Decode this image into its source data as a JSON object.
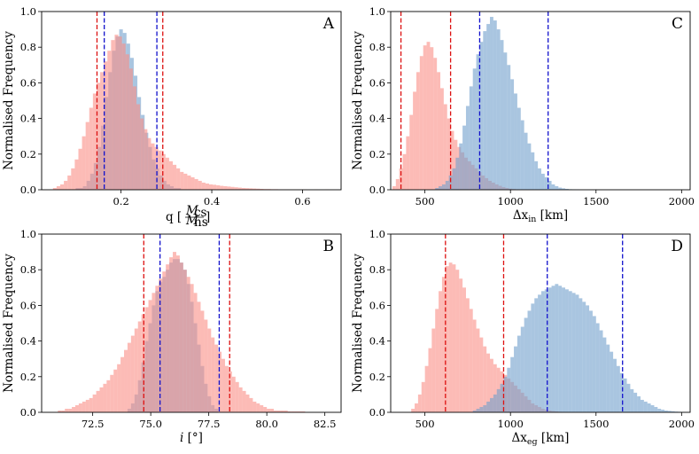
{
  "chart_data": [
    {
      "panel": "A",
      "type": "histogram",
      "ylabel": "Normalised Frequency",
      "xlabel": {
        "main": "q [",
        "num": "M",
        "num_sub": "cs",
        "den": "M",
        "den_sub": "ns",
        "close": "]"
      },
      "xlim": [
        0.025,
        0.685
      ],
      "ylim": [
        0,
        1.0
      ],
      "xticks": [
        {
          "v": 0.2,
          "label": "0.2"
        },
        {
          "v": 0.4,
          "label": "0.4"
        },
        {
          "v": 0.6,
          "label": "0.6"
        }
      ],
      "yticks": [
        {
          "v": 0.0,
          "label": "0.0"
        },
        {
          "v": 0.2,
          "label": "0.2"
        },
        {
          "v": 0.4,
          "label": "0.4"
        },
        {
          "v": 0.6,
          "label": "0.6"
        },
        {
          "v": 0.8,
          "label": "0.8"
        },
        {
          "v": 1.0,
          "label": "1.0"
        }
      ],
      "series": [
        {
          "name": "blue",
          "color": "#6f9fcc",
          "bin_start": 0.06,
          "bin_width": 0.008,
          "values": [
            0,
            0,
            0,
            0,
            0,
            0.01,
            0.01,
            0.02,
            0.05,
            0.09,
            0.15,
            0.24,
            0.36,
            0.52,
            0.66,
            0.78,
            0.86,
            0.9,
            0.88,
            0.82,
            0.74,
            0.64,
            0.52,
            0.42,
            0.32,
            0.24,
            0.17,
            0.12,
            0.08,
            0.05,
            0.03,
            0.02,
            0.01,
            0.01
          ]
        },
        {
          "name": "red",
          "color": "#fa8e86",
          "bin_start": 0.05,
          "bin_width": 0.008,
          "values": [
            0.01,
            0.02,
            0.03,
            0.05,
            0.08,
            0.12,
            0.17,
            0.23,
            0.3,
            0.38,
            0.46,
            0.54,
            0.6,
            0.66,
            0.72,
            0.78,
            0.84,
            0.87,
            0.86,
            0.82,
            0.76,
            0.68,
            0.58,
            0.48,
            0.4,
            0.34,
            0.29,
            0.26,
            0.24,
            0.22,
            0.2,
            0.18,
            0.16,
            0.14,
            0.12,
            0.1,
            0.09,
            0.08,
            0.07,
            0.06,
            0.05,
            0.04,
            0.035,
            0.03,
            0.028,
            0.025,
            0.022,
            0.02,
            0.018,
            0.016,
            0.014,
            0.012,
            0.01,
            0.009,
            0.008,
            0.007,
            0.006,
            0.005,
            0.004,
            0.004,
            0.003,
            0.003,
            0.002,
            0.002,
            0.002,
            0.001,
            0.001,
            0.001,
            0.001,
            0.001,
            0,
            0,
            0.001,
            0,
            0,
            0.001
          ]
        }
      ],
      "vlines": [
        {
          "v": 0.147,
          "color": "#dd1111"
        },
        {
          "v": 0.163,
          "color": "#1111cc"
        },
        {
          "v": 0.279,
          "color": "#1111cc"
        },
        {
          "v": 0.292,
          "color": "#dd1111"
        }
      ]
    },
    {
      "panel": "C",
      "type": "histogram",
      "ylabel": "Normalised Frequency",
      "xlabel": {
        "main": "Δx",
        "sub": "in",
        "unit": " [km]"
      },
      "xlim": [
        300,
        2050
      ],
      "ylim": [
        0,
        1.0
      ],
      "xticks": [
        {
          "v": 500,
          "label": "500"
        },
        {
          "v": 1000,
          "label": "1000"
        },
        {
          "v": 1500,
          "label": "1500"
        },
        {
          "v": 2000,
          "label": "2000"
        }
      ],
      "yticks": [
        {
          "v": 0.0,
          "label": "0.0"
        },
        {
          "v": 0.2,
          "label": "0.2"
        },
        {
          "v": 0.4,
          "label": "0.4"
        },
        {
          "v": 0.6,
          "label": "0.6"
        },
        {
          "v": 0.8,
          "label": "0.8"
        },
        {
          "v": 1.0,
          "label": "1.0"
        }
      ],
      "series": [
        {
          "name": "red",
          "color": "#fa8e86",
          "bin_start": 310,
          "bin_width": 20,
          "values": [
            0.02,
            0.06,
            0.12,
            0.2,
            0.3,
            0.42,
            0.55,
            0.66,
            0.75,
            0.81,
            0.83,
            0.8,
            0.74,
            0.66,
            0.57,
            0.48,
            0.4,
            0.33,
            0.28,
            0.24,
            0.21,
            0.18,
            0.16,
            0.14,
            0.12,
            0.1,
            0.08,
            0.065,
            0.05,
            0.04,
            0.03,
            0.022,
            0.015,
            0.01,
            0.006,
            0.004,
            0.002,
            0.001
          ]
        },
        {
          "name": "blue",
          "color": "#6f9fcc",
          "bin_start": 560,
          "bin_width": 20,
          "values": [
            0.01,
            0.02,
            0.03,
            0.05,
            0.08,
            0.12,
            0.18,
            0.26,
            0.36,
            0.47,
            0.58,
            0.68,
            0.76,
            0.83,
            0.89,
            0.93,
            0.97,
            0.95,
            0.9,
            0.84,
            0.77,
            0.7,
            0.62,
            0.54,
            0.46,
            0.39,
            0.32,
            0.26,
            0.21,
            0.16,
            0.12,
            0.09,
            0.07,
            0.05,
            0.03,
            0.02,
            0.012,
            0.008,
            0.005,
            0.003,
            0.002,
            0.001
          ]
        }
      ],
      "vlines": [
        {
          "v": 360,
          "color": "#dd1111"
        },
        {
          "v": 650,
          "color": "#dd1111"
        },
        {
          "v": 820,
          "color": "#1111cc"
        },
        {
          "v": 1220,
          "color": "#1111cc"
        }
      ]
    },
    {
      "panel": "B",
      "type": "histogram",
      "ylabel": "Normalised Frequency",
      "xlabel": {
        "main": "i",
        "unit": " [°]"
      },
      "xlim": [
        70.3,
        83.2
      ],
      "ylim": [
        0,
        1.0
      ],
      "xticks": [
        {
          "v": 72.5,
          "label": "72.5"
        },
        {
          "v": 75.0,
          "label": "75.0"
        },
        {
          "v": 77.5,
          "label": "77.5"
        },
        {
          "v": 80.0,
          "label": "80.0"
        },
        {
          "v": 82.5,
          "label": "82.5"
        }
      ],
      "yticks": [
        {
          "v": 0.0,
          "label": "0.0"
        },
        {
          "v": 0.2,
          "label": "0.2"
        },
        {
          "v": 0.4,
          "label": "0.4"
        },
        {
          "v": 0.6,
          "label": "0.6"
        },
        {
          "v": 0.8,
          "label": "0.8"
        },
        {
          "v": 1.0,
          "label": "1.0"
        }
      ],
      "series": [
        {
          "name": "blue",
          "color": "#6f9fcc",
          "bin_start": 74.0,
          "bin_width": 0.15,
          "values": [
            0.02,
            0.05,
            0.1,
            0.18,
            0.28,
            0.4,
            0.5,
            0.6,
            0.68,
            0.73,
            0.76,
            0.8,
            0.84,
            0.86,
            0.86,
            0.84,
            0.8,
            0.72,
            0.62,
            0.5,
            0.38,
            0.26,
            0.16,
            0.09,
            0.04,
            0.02
          ]
        },
        {
          "name": "red",
          "color": "#fa8e86",
          "bin_start": 71.0,
          "bin_width": 0.15,
          "values": [
            0.01,
            0.01,
            0.02,
            0.02,
            0.03,
            0.04,
            0.05,
            0.06,
            0.07,
            0.08,
            0.1,
            0.12,
            0.14,
            0.16,
            0.18,
            0.21,
            0.24,
            0.27,
            0.31,
            0.35,
            0.39,
            0.43,
            0.47,
            0.51,
            0.55,
            0.59,
            0.63,
            0.67,
            0.71,
            0.75,
            0.79,
            0.83,
            0.87,
            0.9,
            0.88,
            0.84,
            0.8,
            0.76,
            0.72,
            0.67,
            0.62,
            0.57,
            0.52,
            0.47,
            0.42,
            0.38,
            0.34,
            0.3,
            0.26,
            0.23,
            0.2,
            0.17,
            0.14,
            0.12,
            0.1,
            0.08,
            0.06,
            0.05,
            0.04,
            0.03,
            0.02,
            0.02,
            0.01,
            0.01,
            0.01,
            0.01,
            0.005,
            0.005,
            0.005,
            0.005,
            0.005
          ]
        }
      ],
      "vlines": [
        {
          "v": 74.7,
          "color": "#dd1111"
        },
        {
          "v": 75.4,
          "color": "#1111cc"
        },
        {
          "v": 77.95,
          "color": "#1111cc"
        },
        {
          "v": 78.4,
          "color": "#dd1111"
        }
      ]
    },
    {
      "panel": "D",
      "type": "histogram",
      "ylabel": "Normalised Frequency",
      "xlabel": {
        "main": "Δx",
        "sub": "eg",
        "unit": " [km]"
      },
      "xlim": [
        300,
        2050
      ],
      "ylim": [
        0,
        1.0
      ],
      "xticks": [
        {
          "v": 500,
          "label": "500"
        },
        {
          "v": 1000,
          "label": "1000"
        },
        {
          "v": 1500,
          "label": "1500"
        },
        {
          "v": 2000,
          "label": "2000"
        }
      ],
      "yticks": [
        {
          "v": 0.0,
          "label": "0.0"
        },
        {
          "v": 0.2,
          "label": "0.2"
        },
        {
          "v": 0.4,
          "label": "0.4"
        },
        {
          "v": 0.6,
          "label": "0.6"
        },
        {
          "v": 0.8,
          "label": "0.8"
        },
        {
          "v": 1.0,
          "label": "1.0"
        }
      ],
      "series": [
        {
          "name": "red",
          "color": "#fa8e86",
          "bin_start": 420,
          "bin_width": 20,
          "values": [
            0.02,
            0.05,
            0.1,
            0.17,
            0.26,
            0.36,
            0.47,
            0.58,
            0.68,
            0.76,
            0.82,
            0.84,
            0.83,
            0.8,
            0.75,
            0.7,
            0.64,
            0.58,
            0.52,
            0.47,
            0.42,
            0.37,
            0.33,
            0.3,
            0.27,
            0.25,
            0.23,
            0.21,
            0.19,
            0.17,
            0.15,
            0.13,
            0.11,
            0.09,
            0.07,
            0.05,
            0.04,
            0.03,
            0.02,
            0.015,
            0.01,
            0.007,
            0.005,
            0.003,
            0.002,
            0.001
          ]
        },
        {
          "name": "blue",
          "color": "#6f9fcc",
          "bin_start": 780,
          "bin_width": 20,
          "values": [
            0.01,
            0.02,
            0.03,
            0.04,
            0.06,
            0.08,
            0.1,
            0.13,
            0.16,
            0.2,
            0.25,
            0.31,
            0.37,
            0.43,
            0.48,
            0.53,
            0.57,
            0.61,
            0.64,
            0.66,
            0.68,
            0.69,
            0.7,
            0.71,
            0.72,
            0.71,
            0.7,
            0.69,
            0.68,
            0.67,
            0.66,
            0.64,
            0.62,
            0.6,
            0.57,
            0.54,
            0.5,
            0.46,
            0.42,
            0.38,
            0.34,
            0.3,
            0.26,
            0.22,
            0.19,
            0.16,
            0.13,
            0.11,
            0.09,
            0.07,
            0.06,
            0.05,
            0.04,
            0.03,
            0.02,
            0.015,
            0.01,
            0.008,
            0.006,
            0.004,
            0.003,
            0.002,
            0.001,
            0.001
          ]
        }
      ],
      "vlines": [
        {
          "v": 620,
          "color": "#dd1111"
        },
        {
          "v": 960,
          "color": "#dd1111"
        },
        {
          "v": 1215,
          "color": "#1111cc"
        },
        {
          "v": 1655,
          "color": "#1111cc"
        }
      ]
    }
  ]
}
